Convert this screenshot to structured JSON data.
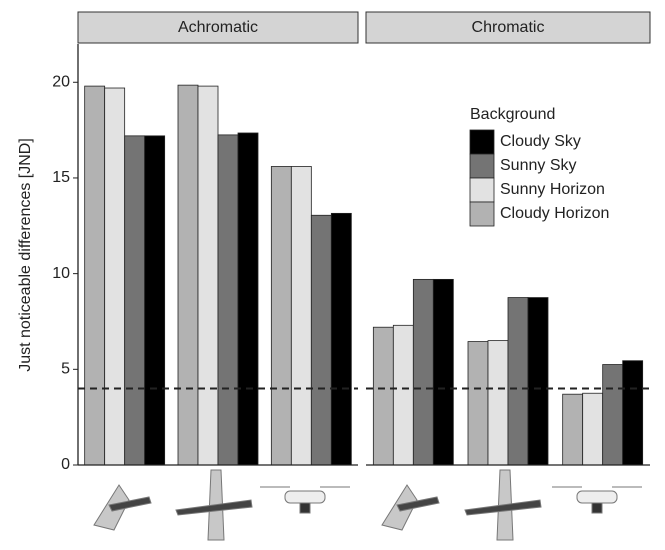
{
  "chart_data": [
    {
      "type": "bar",
      "title": "Achromatic",
      "y_label": "Just noticeable differences [JND]",
      "categories": [
        null,
        null,
        null
      ],
      "ylim": [
        0,
        22
      ],
      "yticks": [
        0,
        5,
        10,
        15,
        20
      ],
      "hline": 4,
      "series": [
        {
          "name": "Cloudy Horizon",
          "color": "#b2b2b2",
          "values": [
            19.8,
            19.85,
            15.6
          ]
        },
        {
          "name": "Sunny Horizon",
          "color": "#e2e2e2",
          "values": [
            19.7,
            19.8,
            15.6
          ]
        },
        {
          "name": "Sunny Sky",
          "color": "#747474",
          "values": [
            17.2,
            17.25,
            13.05
          ]
        },
        {
          "name": "Cloudy Sky",
          "color": "#000000",
          "values": [
            17.2,
            17.35,
            13.15
          ]
        }
      ]
    },
    {
      "type": "bar",
      "title": "Chromatic",
      "legend_title": "Background",
      "legend": "top-right",
      "categories": [
        null,
        null,
        null
      ],
      "ylim": [
        0,
        22
      ],
      "hline": 4,
      "series": [
        {
          "name": "Cloudy Horizon",
          "color": "#b2b2b2",
          "values": [
            7.2,
            6.45,
            3.7
          ]
        },
        {
          "name": "Sunny Horizon",
          "color": "#e2e2e2",
          "values": [
            7.3,
            6.5,
            3.75
          ]
        },
        {
          "name": "Sunny Sky",
          "color": "#747474",
          "values": [
            9.7,
            8.75,
            5.25
          ]
        },
        {
          "name": "Cloudy Sky",
          "color": "#000000",
          "values": [
            9.7,
            8.75,
            5.45
          ]
        }
      ]
    }
  ]
}
